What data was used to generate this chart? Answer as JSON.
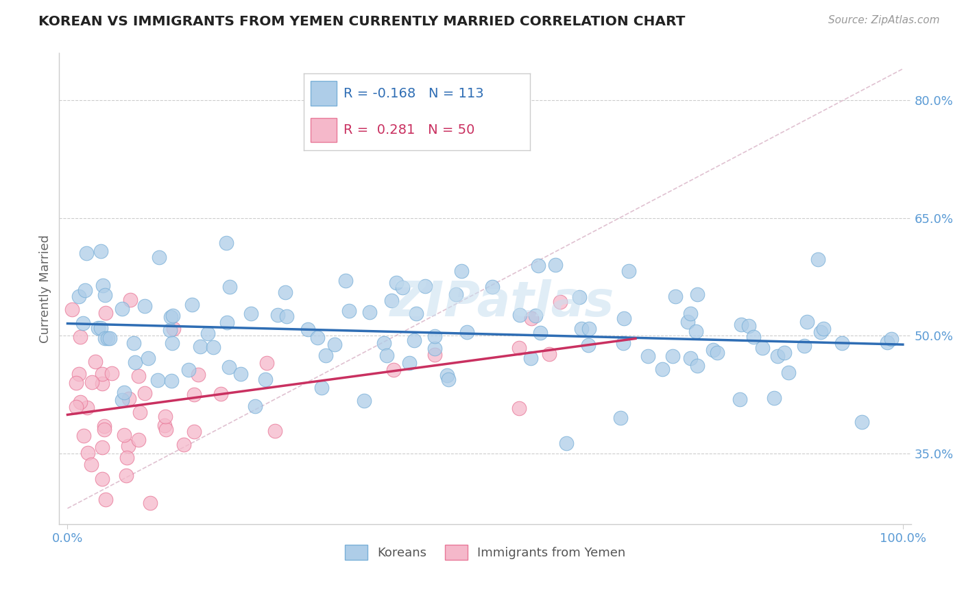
{
  "title": "KOREAN VS IMMIGRANTS FROM YEMEN CURRENTLY MARRIED CORRELATION CHART",
  "source": "Source: ZipAtlas.com",
  "ylabel": "Currently Married",
  "xlim": [
    -0.01,
    1.01
  ],
  "ylim": [
    0.26,
    0.86
  ],
  "yticks": [
    0.35,
    0.5,
    0.65,
    0.8
  ],
  "ytick_labels": [
    "35.0%",
    "50.0%",
    "65.0%",
    "80.0%"
  ],
  "xtick_labels": [
    "0.0%",
    "100.0%"
  ],
  "korean_color": "#aecde8",
  "korean_edge_color": "#7ab0d8",
  "yemen_color": "#f5b8ca",
  "yemen_edge_color": "#e87898",
  "korean_line_color": "#2e6db4",
  "yemen_line_color": "#c93060",
  "diag_line_color": "#ddbbcc",
  "legend_korean_label": "Koreans",
  "legend_yemen_label": "Immigrants from Yemen",
  "R_korean": -0.168,
  "N_korean": 113,
  "R_yemen": 0.281,
  "N_yemen": 50,
  "title_color": "#222222",
  "axis_label_color": "#5b9bd5",
  "watermark": "ZIPatlas",
  "background_color": "#ffffff"
}
